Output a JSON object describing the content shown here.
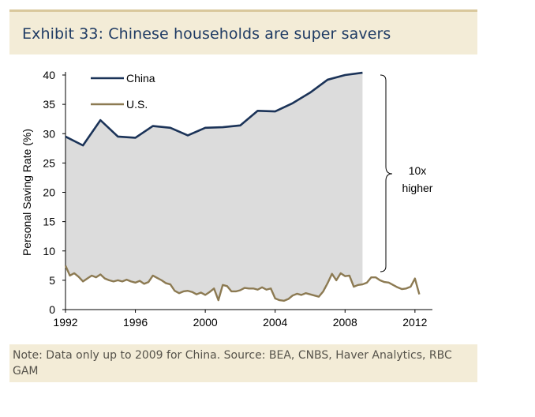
{
  "title": "Exhibit 33: Chinese households are super savers",
  "note": "Note: Data only up to 2009 for China. Source: BEA, CNBS, Haver Analytics, RBC GAM",
  "annotation": [
    "10x",
    "higher"
  ],
  "colors": {
    "china": "#1b3358",
    "us": "#8c7a52",
    "fill": "#dcdcdc",
    "panel": "#f3ecd7"
  },
  "chart_data": {
    "type": "line",
    "ylabel": "Personal Saving Rate (%)",
    "xlabel": "",
    "xlim": [
      1992,
      2013
    ],
    "ylim": [
      0,
      40
    ],
    "xticks": [
      "1992",
      "1996",
      "2000",
      "2004",
      "2008",
      "2012"
    ],
    "yticks": [
      "0",
      "5",
      "10",
      "15",
      "20",
      "25",
      "30",
      "35",
      "40"
    ],
    "legend_position": "top-left",
    "series": [
      {
        "name": "China",
        "x": [
          1992,
          1993,
          1994,
          1995,
          1996,
          1997,
          1998,
          1999,
          2000,
          2001,
          2002,
          2003,
          2004,
          2005,
          2006,
          2007,
          2008,
          2009
        ],
        "values": [
          29.5,
          28.0,
          32.3,
          29.5,
          29.3,
          31.3,
          31.0,
          29.7,
          31.0,
          31.1,
          31.4,
          33.9,
          33.8,
          35.2,
          37.0,
          39.2,
          40.0,
          40.4
        ]
      },
      {
        "name": "U.S.",
        "x": [
          1992.0,
          1992.25,
          1992.5,
          1992.75,
          1993.0,
          1993.25,
          1993.5,
          1993.75,
          1994.0,
          1994.25,
          1994.5,
          1994.75,
          1995.0,
          1995.25,
          1995.5,
          1995.75,
          1996.0,
          1996.25,
          1996.5,
          1996.75,
          1997.0,
          1997.25,
          1997.5,
          1997.75,
          1998.0,
          1998.25,
          1998.5,
          1998.75,
          1999.0,
          1999.25,
          1999.5,
          1999.75,
          2000.0,
          2000.25,
          2000.5,
          2000.75,
          2001.0,
          2001.25,
          2001.5,
          2001.75,
          2002.0,
          2002.25,
          2002.5,
          2002.75,
          2003.0,
          2003.25,
          2003.5,
          2003.75,
          2004.0,
          2004.25,
          2004.5,
          2004.75,
          2005.0,
          2005.25,
          2005.5,
          2005.75,
          2006.0,
          2006.25,
          2006.5,
          2006.75,
          2007.0,
          2007.25,
          2007.5,
          2007.75,
          2008.0,
          2008.25,
          2008.5,
          2008.75,
          2009.0,
          2009.25,
          2009.5,
          2009.75,
          2010.0,
          2010.25,
          2010.5,
          2010.75,
          2011.0,
          2011.25,
          2011.5,
          2011.75,
          2012.0,
          2012.25
        ],
        "values": [
          7.5,
          5.8,
          6.2,
          5.6,
          4.8,
          5.3,
          5.8,
          5.5,
          6.0,
          5.3,
          5.0,
          4.8,
          5.0,
          4.8,
          5.1,
          4.8,
          4.6,
          4.9,
          4.4,
          4.7,
          5.8,
          5.4,
          5.0,
          4.5,
          4.3,
          3.2,
          2.8,
          3.1,
          3.2,
          3.0,
          2.6,
          2.9,
          2.5,
          3.0,
          3.6,
          1.6,
          4.2,
          4.0,
          3.1,
          3.1,
          3.3,
          3.7,
          3.6,
          3.6,
          3.4,
          3.8,
          3.4,
          3.6,
          1.9,
          1.6,
          1.5,
          1.8,
          2.4,
          2.7,
          2.5,
          2.8,
          2.6,
          2.4,
          2.2,
          3.1,
          4.5,
          6.1,
          5.0,
          6.2,
          5.7,
          5.8,
          3.9,
          4.2,
          4.3,
          4.6,
          5.5,
          5.5,
          5.0,
          4.7,
          4.6,
          4.2,
          3.8,
          3.5,
          3.6,
          3.9,
          5.3,
          2.6
        ]
      }
    ]
  }
}
